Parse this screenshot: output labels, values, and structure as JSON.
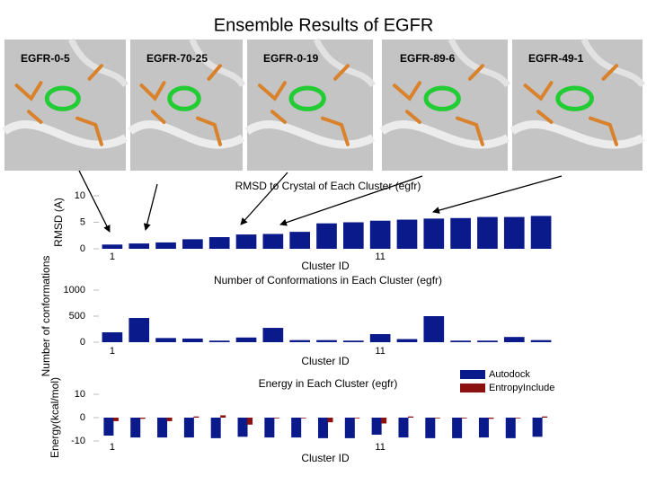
{
  "title": "Ensemble Results of EGFR",
  "panels": [
    "EGFR-0-5",
    "EGFR-70-25",
    "EGFR-0-19",
    "EGFR-89-6",
    "EGFR-49-1"
  ],
  "chart_data": [
    {
      "type": "bar",
      "title": "RMSD to Crystal of Each Cluster (egfr)",
      "y_label": "RMSD (A)",
      "x_label": "Cluster ID",
      "categories": [
        "1",
        null,
        null,
        null,
        null,
        null,
        null,
        null,
        null,
        null,
        "11",
        null,
        null,
        null,
        null,
        null,
        null
      ],
      "values": [
        0.8,
        1.0,
        1.2,
        1.8,
        2.2,
        2.7,
        2.8,
        3.2,
        4.8,
        5.0,
        5.3,
        5.5,
        5.7,
        5.8,
        6.0,
        6.0,
        6.2
      ],
      "color": "#0b1a8a",
      "ylim": [
        0,
        10
      ],
      "yticks": [
        0,
        5,
        10
      ]
    },
    {
      "type": "bar",
      "title": "Number of Conformations in Each Cluster (egfr)",
      "y_label": "Number of conformations",
      "x_label": "Cluster ID",
      "categories": [
        "1",
        null,
        null,
        null,
        null,
        null,
        null,
        null,
        null,
        null,
        "11",
        null,
        null,
        null,
        null,
        null,
        null
      ],
      "values": [
        190,
        465,
        80,
        70,
        30,
        90,
        275,
        40,
        40,
        30,
        155,
        60,
        500,
        30,
        30,
        100,
        40
      ],
      "color": "#0b1a8a",
      "ylim": [
        0,
        1000
      ],
      "yticks": [
        0,
        500,
        1000
      ]
    },
    {
      "type": "bar",
      "title": "Energy in Each Cluster (egfr)",
      "y_label": "Energy(kcal/mol)",
      "x_label": "Cluster ID",
      "categories": [
        "1",
        null,
        null,
        null,
        null,
        null,
        null,
        null,
        null,
        null,
        "11",
        null,
        null,
        null,
        null,
        null,
        null
      ],
      "series": [
        {
          "name": "Autodock",
          "color": "#0b1a8a",
          "values": [
            -7.7,
            -8.5,
            -8.5,
            -8.5,
            -8.8,
            -8.2,
            -8.5,
            -8.5,
            -8.8,
            -8.8,
            -7.3,
            -8.5,
            -8.8,
            -8.8,
            -8.5,
            -8.8,
            -8.2
          ]
        },
        {
          "name": "EntropyInclude",
          "color": "#8b1010",
          "values": [
            -1.5,
            -0.5,
            -1.5,
            0.5,
            1.0,
            -3.0,
            -0.3,
            -0.3,
            -2.0,
            -0.3,
            -2.5,
            0.5,
            -0.3,
            -0.3,
            -0.5,
            -0.3,
            0.5
          ]
        }
      ],
      "ylim": [
        -10,
        10
      ],
      "yticks": [
        -10,
        0,
        10
      ],
      "legend": "upper right"
    }
  ]
}
